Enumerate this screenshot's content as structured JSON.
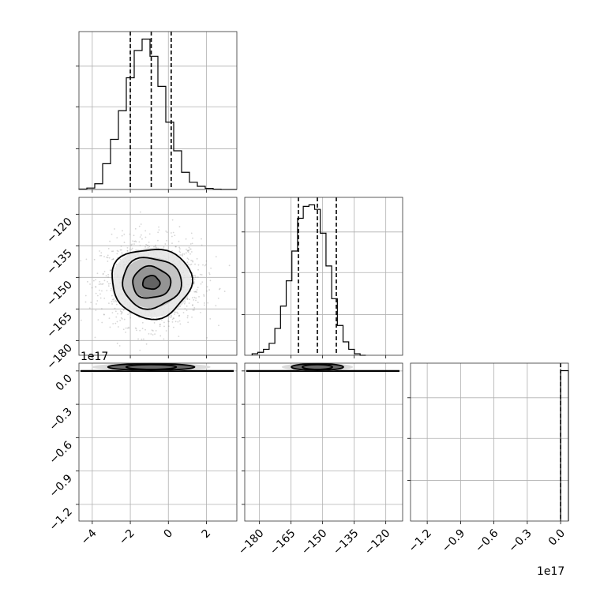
{
  "chart_data": {
    "type": "corner",
    "offset_labels": {
      "x": "1e17",
      "y": "1e17"
    },
    "parameters": [
      {
        "range": [
          -4.7,
          3.6
        ],
        "ticks": [
          -4,
          -2,
          0,
          2
        ],
        "tick_labels": [
          "−4",
          "−2",
          "0",
          "2"
        ],
        "quantiles": [
          -2.0,
          -0.9,
          0.15
        ],
        "hist": {
          "edges": [
            -4.7,
            -4.285,
            -3.87,
            -3.455,
            -3.04,
            -2.625,
            -2.21,
            -1.795,
            -1.38,
            -0.965,
            -0.55,
            -0.135,
            0.28,
            0.695,
            1.11,
            1.525,
            1.94,
            2.355,
            2.77,
            3.185,
            3.6
          ],
          "counts": [
            0.003,
            0.01,
            0.04,
            0.18,
            0.35,
            0.55,
            0.78,
            0.97,
            1.05,
            0.93,
            0.72,
            0.47,
            0.27,
            0.12,
            0.05,
            0.022,
            0.008,
            0.002,
            0,
            0
          ]
        }
      },
      {
        "range": [
          -187,
          -112
        ],
        "ticks": [
          -180,
          -165,
          -150,
          -135,
          -120
        ],
        "tick_labels": [
          "−180",
          "−165",
          "−150",
          "−135",
          "−120"
        ],
        "quantiles": [
          -161.5,
          -152.5,
          -143.5
        ],
        "hist": {
          "edges": [
            -183.5,
            -180.8,
            -178.1,
            -175.4,
            -172.7,
            -170.0,
            -167.3,
            -164.6,
            -161.9,
            -159.2,
            -156.5,
            -153.8,
            -151.1,
            -148.4,
            -145.7,
            -143.0,
            -140.3,
            -137.6,
            -134.9,
            -132.2,
            -129.5
          ],
          "counts": [
            0.01,
            0.02,
            0.04,
            0.08,
            0.18,
            0.33,
            0.5,
            0.7,
            0.92,
            1.0,
            1.01,
            0.98,
            0.82,
            0.6,
            0.38,
            0.2,
            0.09,
            0.04,
            0.01,
            0
          ]
        }
      },
      {
        "range": [
          -1.35,
          0.07
        ],
        "ticks": [
          -1.2,
          -0.9,
          -0.6,
          -0.3,
          0.0
        ],
        "tick_labels": [
          "−1.2",
          "−0.9",
          "−0.6",
          "−0.3",
          "0.0"
        ],
        "quantiles": [
          0.0
        ],
        "hist": {
          "edges": [
            0.0,
            0.07
          ],
          "counts": [
            1.0
          ]
        }
      }
    ],
    "contours_2d": {
      "1_0": {
        "center": [
          -0.9,
          -152.5
        ],
        "levels": [
          {
            "rx": 0.45,
            "ry": 3.2
          },
          {
            "rx": 1.0,
            "ry": 7.5
          },
          {
            "rx": 1.55,
            "ry": 12.0
          },
          {
            "rx": 2.1,
            "ry": 16.5
          }
        ]
      },
      "2_0": {
        "center": [
          -0.9,
          0.002
        ],
        "spread": [
          1.2,
          0.0025
        ]
      },
      "2_1": {
        "center": [
          -152.5,
          0.002
        ],
        "spread": [
          6.5,
          0.0025
        ]
      }
    }
  }
}
